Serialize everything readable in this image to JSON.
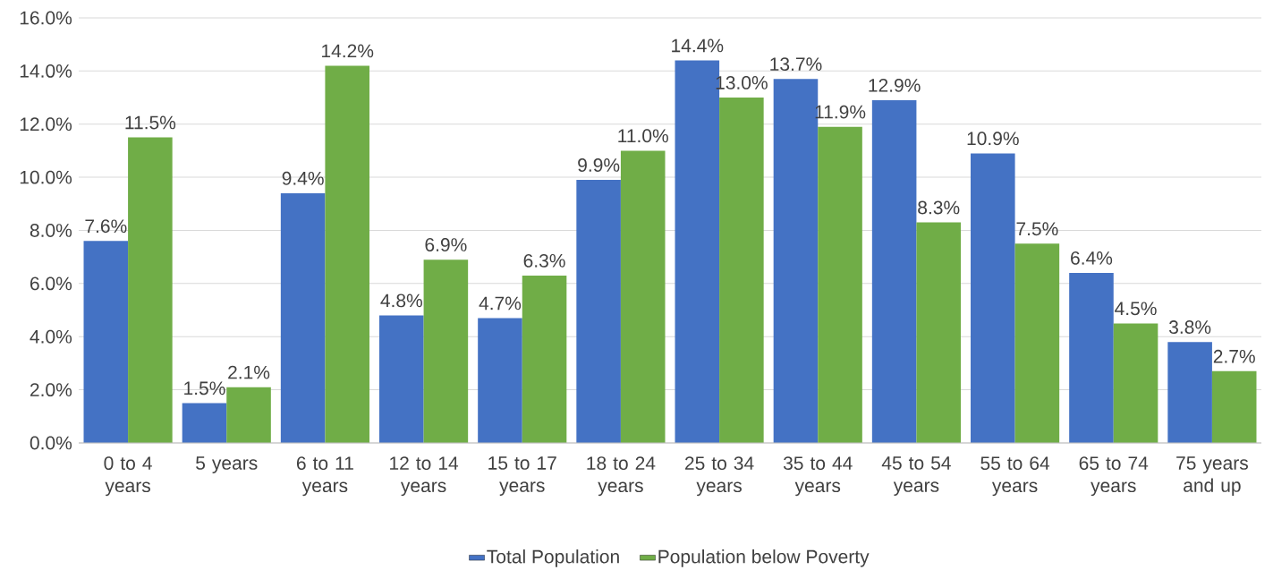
{
  "chart_data": {
    "type": "bar",
    "categories": [
      "0 to 4 years",
      "5 years",
      "6 to 11 years",
      "12 to 14 years",
      "15 to 17 years",
      "18 to 24 years",
      "25 to 34 years",
      "35 to 44 years",
      "45 to 54 years",
      "55 to 64 years",
      "65 to 74 years",
      "75 years and up"
    ],
    "series": [
      {
        "name": "Total Population",
        "color": "#4472c4",
        "values": [
          7.6,
          1.5,
          9.4,
          4.8,
          4.7,
          9.9,
          14.4,
          13.7,
          12.9,
          10.9,
          6.4,
          3.8
        ],
        "value_labels": [
          "7.6%",
          "1.5%",
          "9.4%",
          "4.8%",
          "4.7%",
          "9.9%",
          "14.4%",
          "13.7%",
          "12.9%",
          "10.9%",
          "6.4%",
          "3.8%"
        ]
      },
      {
        "name": "Population below Poverty",
        "color": "#70ad47",
        "values": [
          11.5,
          2.1,
          14.2,
          6.9,
          6.3,
          11.0,
          13.0,
          11.9,
          8.3,
          7.5,
          4.5,
          2.7
        ],
        "value_labels": [
          "11.5%",
          "2.1%",
          "14.2%",
          "6.9%",
          "6.3%",
          "11.0%",
          "13.0%",
          "11.9%",
          "8.3%",
          "7.5%",
          "4.5%",
          "2.7%"
        ]
      }
    ],
    "ylim": [
      0,
      16
    ],
    "yticks": [
      {
        "value": 0,
        "label": "0.0%"
      },
      {
        "value": 2,
        "label": "2.0%"
      },
      {
        "value": 4,
        "label": "4.0%"
      },
      {
        "value": 6,
        "label": "6.0%"
      },
      {
        "value": 8,
        "label": "8.0%"
      },
      {
        "value": 10,
        "label": "10.0%"
      },
      {
        "value": 12,
        "label": "12.0%"
      },
      {
        "value": 14,
        "label": "14.0%"
      },
      {
        "value": 16,
        "label": "16.0%"
      }
    ],
    "grid": "y",
    "legend": "bottom"
  }
}
